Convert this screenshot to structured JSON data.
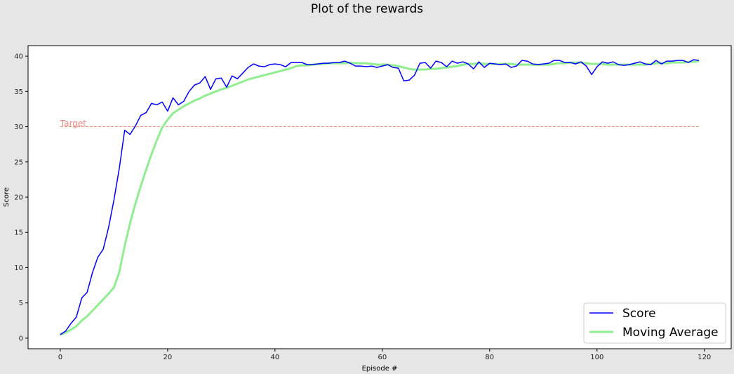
{
  "chart_data": {
    "type": "line",
    "title": "Plot of the rewards",
    "xlabel": "Episode #",
    "ylabel": "Score",
    "xlim": [
      -6,
      125
    ],
    "ylim": [
      -1.5,
      41.5
    ],
    "x_ticks": [
      0,
      20,
      40,
      60,
      80,
      100,
      120
    ],
    "y_ticks": [
      0,
      5,
      10,
      15,
      20,
      25,
      30,
      35,
      40
    ],
    "grid": false,
    "legend_position": "bottom-right",
    "series": [
      {
        "name": "Score",
        "color": "#0000ff",
        "values": [
          0.5,
          1.0,
          2.1,
          3.0,
          5.7,
          6.5,
          9.3,
          11.5,
          12.6,
          15.7,
          19.6,
          24.1,
          29.5,
          28.9,
          30.1,
          31.6,
          32.0,
          33.3,
          33.1,
          33.5,
          32.2,
          34.1,
          33.1,
          33.6,
          35.0,
          35.9,
          36.2,
          37.1,
          35.3,
          36.8,
          36.9,
          35.6,
          37.2,
          36.8,
          37.6,
          38.4,
          38.9,
          38.6,
          38.5,
          38.8,
          38.9,
          38.8,
          38.5,
          39.1,
          39.1,
          39.1,
          38.8,
          38.8,
          38.9,
          39.0,
          39.0,
          39.1,
          39.1,
          39.3,
          39.0,
          38.6,
          38.6,
          38.5,
          38.6,
          38.4,
          38.6,
          38.8,
          38.4,
          38.3,
          36.5,
          36.6,
          37.3,
          39.0,
          39.1,
          38.3,
          39.3,
          39.1,
          38.5,
          39.3,
          39.0,
          39.2,
          38.9,
          38.2,
          39.2,
          38.4,
          39.0,
          38.9,
          38.8,
          38.9,
          38.4,
          38.6,
          39.4,
          39.3,
          38.9,
          38.8,
          38.9,
          39.0,
          39.4,
          39.4,
          39.1,
          39.1,
          38.9,
          39.2,
          38.6,
          37.4,
          38.5,
          39.2,
          39.0,
          39.2,
          38.8,
          38.7,
          38.8,
          39.0,
          39.2,
          38.9,
          38.8,
          39.4,
          38.9,
          39.3,
          39.3,
          39.4,
          39.4,
          39.1,
          39.5,
          39.4
        ]
      },
      {
        "name": "Moving Average",
        "color": "#90ee90",
        "values": [
          0.5,
          0.8,
          1.2,
          1.7,
          2.5,
          3.1,
          3.9,
          4.7,
          5.5,
          6.3,
          7.2,
          9.4,
          13.1,
          16.3,
          19.1,
          21.6,
          23.9,
          26.1,
          28.1,
          29.9,
          31.0,
          31.9,
          32.4,
          32.9,
          33.3,
          33.7,
          34.0,
          34.4,
          34.7,
          35.0,
          35.3,
          35.5,
          35.8,
          36.1,
          36.4,
          36.7,
          36.9,
          37.1,
          37.3,
          37.5,
          37.7,
          37.9,
          38.1,
          38.3,
          38.6,
          38.7,
          38.7,
          38.8,
          38.9,
          38.9,
          39.0,
          39.0,
          39.0,
          39.0,
          39.1,
          39.0,
          39.0,
          39.0,
          38.9,
          38.8,
          38.8,
          38.8,
          38.7,
          38.6,
          38.4,
          38.2,
          38.1,
          38.1,
          38.1,
          38.2,
          38.2,
          38.3,
          38.4,
          38.5,
          38.6,
          38.8,
          38.9,
          38.9,
          39.0,
          38.9,
          38.9,
          38.9,
          38.9,
          38.9,
          38.9,
          38.8,
          38.8,
          38.8,
          38.8,
          38.8,
          38.8,
          38.8,
          38.9,
          39.0,
          39.0,
          39.1,
          39.1,
          39.1,
          39.0,
          38.9,
          38.9,
          38.9,
          38.8,
          38.8,
          38.8,
          38.8,
          38.8,
          38.8,
          38.8,
          38.8,
          38.9,
          39.0,
          39.0,
          39.0,
          39.1,
          39.1,
          39.1,
          39.2,
          39.2,
          39.3
        ]
      }
    ],
    "reference_line": {
      "label": "Target",
      "y": 30,
      "x_range": [
        0,
        119
      ],
      "color": "#e9967a"
    }
  }
}
